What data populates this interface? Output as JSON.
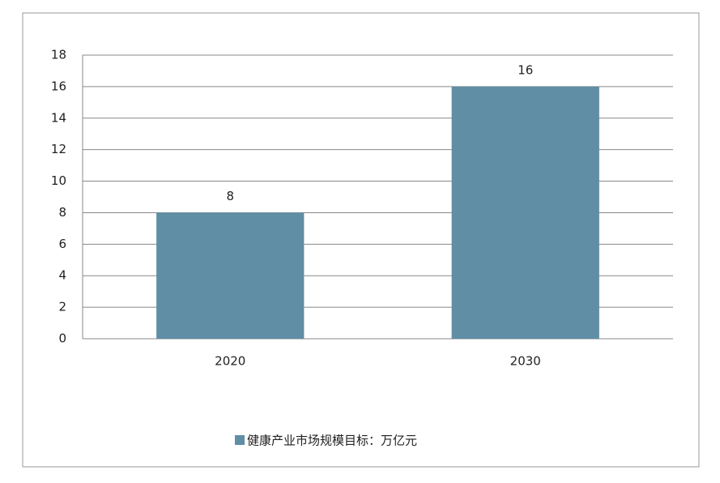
{
  "chart_data": {
    "type": "bar",
    "categories": [
      "2020",
      "2030"
    ],
    "series": [
      {
        "name": "健康产业市场规模目标：万亿元",
        "color": "#5f8ea5",
        "values": [
          8,
          16
        ]
      }
    ],
    "ylim": [
      0,
      18
    ],
    "yticks": [
      0,
      2,
      4,
      6,
      8,
      10,
      12,
      14,
      16,
      18
    ],
    "grid": true,
    "legend": "bottom"
  }
}
